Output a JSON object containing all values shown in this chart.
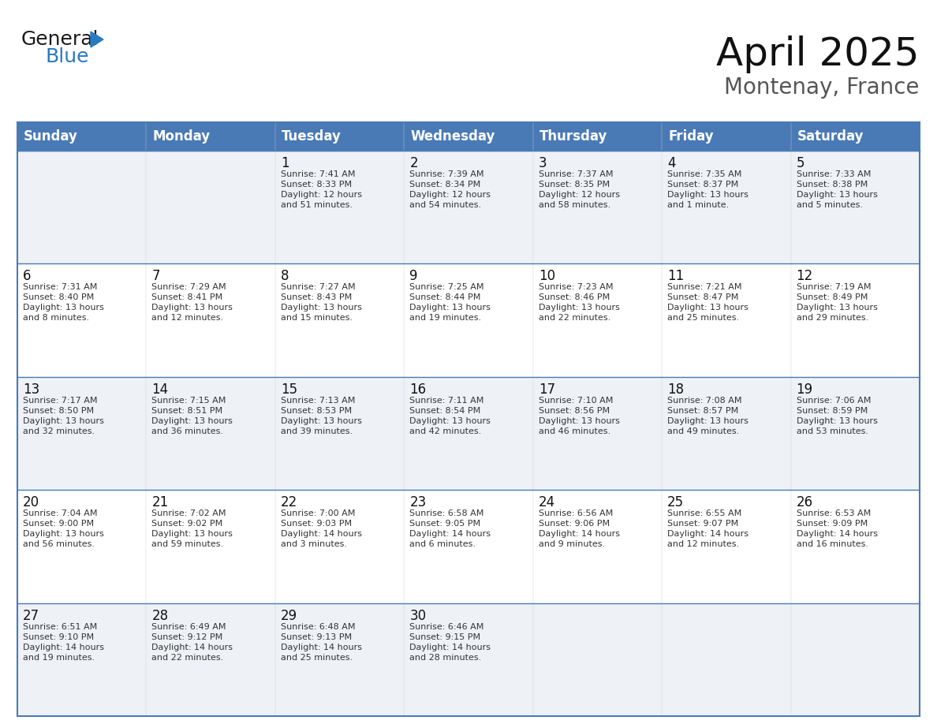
{
  "title": "April 2025",
  "subtitle": "Montenay, France",
  "header_bg_color": "#4a7ab5",
  "header_text_color": "#ffffff",
  "row_bg_color_even": "#eef2f7",
  "row_bg_color_odd": "#ffffff",
  "cell_border_color": "#4a7ab5",
  "day_headers": [
    "Sunday",
    "Monday",
    "Tuesday",
    "Wednesday",
    "Thursday",
    "Friday",
    "Saturday"
  ],
  "weeks": [
    [
      {
        "day": "",
        "sunrise": "",
        "sunset": "",
        "daylight": ""
      },
      {
        "day": "",
        "sunrise": "",
        "sunset": "",
        "daylight": ""
      },
      {
        "day": "1",
        "sunrise": "Sunrise: 7:41 AM",
        "sunset": "Sunset: 8:33 PM",
        "daylight": "Daylight: 12 hours\nand 51 minutes."
      },
      {
        "day": "2",
        "sunrise": "Sunrise: 7:39 AM",
        "sunset": "Sunset: 8:34 PM",
        "daylight": "Daylight: 12 hours\nand 54 minutes."
      },
      {
        "day": "3",
        "sunrise": "Sunrise: 7:37 AM",
        "sunset": "Sunset: 8:35 PM",
        "daylight": "Daylight: 12 hours\nand 58 minutes."
      },
      {
        "day": "4",
        "sunrise": "Sunrise: 7:35 AM",
        "sunset": "Sunset: 8:37 PM",
        "daylight": "Daylight: 13 hours\nand 1 minute."
      },
      {
        "day": "5",
        "sunrise": "Sunrise: 7:33 AM",
        "sunset": "Sunset: 8:38 PM",
        "daylight": "Daylight: 13 hours\nand 5 minutes."
      }
    ],
    [
      {
        "day": "6",
        "sunrise": "Sunrise: 7:31 AM",
        "sunset": "Sunset: 8:40 PM",
        "daylight": "Daylight: 13 hours\nand 8 minutes."
      },
      {
        "day": "7",
        "sunrise": "Sunrise: 7:29 AM",
        "sunset": "Sunset: 8:41 PM",
        "daylight": "Daylight: 13 hours\nand 12 minutes."
      },
      {
        "day": "8",
        "sunrise": "Sunrise: 7:27 AM",
        "sunset": "Sunset: 8:43 PM",
        "daylight": "Daylight: 13 hours\nand 15 minutes."
      },
      {
        "day": "9",
        "sunrise": "Sunrise: 7:25 AM",
        "sunset": "Sunset: 8:44 PM",
        "daylight": "Daylight: 13 hours\nand 19 minutes."
      },
      {
        "day": "10",
        "sunrise": "Sunrise: 7:23 AM",
        "sunset": "Sunset: 8:46 PM",
        "daylight": "Daylight: 13 hours\nand 22 minutes."
      },
      {
        "day": "11",
        "sunrise": "Sunrise: 7:21 AM",
        "sunset": "Sunset: 8:47 PM",
        "daylight": "Daylight: 13 hours\nand 25 minutes."
      },
      {
        "day": "12",
        "sunrise": "Sunrise: 7:19 AM",
        "sunset": "Sunset: 8:49 PM",
        "daylight": "Daylight: 13 hours\nand 29 minutes."
      }
    ],
    [
      {
        "day": "13",
        "sunrise": "Sunrise: 7:17 AM",
        "sunset": "Sunset: 8:50 PM",
        "daylight": "Daylight: 13 hours\nand 32 minutes."
      },
      {
        "day": "14",
        "sunrise": "Sunrise: 7:15 AM",
        "sunset": "Sunset: 8:51 PM",
        "daylight": "Daylight: 13 hours\nand 36 minutes."
      },
      {
        "day": "15",
        "sunrise": "Sunrise: 7:13 AM",
        "sunset": "Sunset: 8:53 PM",
        "daylight": "Daylight: 13 hours\nand 39 minutes."
      },
      {
        "day": "16",
        "sunrise": "Sunrise: 7:11 AM",
        "sunset": "Sunset: 8:54 PM",
        "daylight": "Daylight: 13 hours\nand 42 minutes."
      },
      {
        "day": "17",
        "sunrise": "Sunrise: 7:10 AM",
        "sunset": "Sunset: 8:56 PM",
        "daylight": "Daylight: 13 hours\nand 46 minutes."
      },
      {
        "day": "18",
        "sunrise": "Sunrise: 7:08 AM",
        "sunset": "Sunset: 8:57 PM",
        "daylight": "Daylight: 13 hours\nand 49 minutes."
      },
      {
        "day": "19",
        "sunrise": "Sunrise: 7:06 AM",
        "sunset": "Sunset: 8:59 PM",
        "daylight": "Daylight: 13 hours\nand 53 minutes."
      }
    ],
    [
      {
        "day": "20",
        "sunrise": "Sunrise: 7:04 AM",
        "sunset": "Sunset: 9:00 PM",
        "daylight": "Daylight: 13 hours\nand 56 minutes."
      },
      {
        "day": "21",
        "sunrise": "Sunrise: 7:02 AM",
        "sunset": "Sunset: 9:02 PM",
        "daylight": "Daylight: 13 hours\nand 59 minutes."
      },
      {
        "day": "22",
        "sunrise": "Sunrise: 7:00 AM",
        "sunset": "Sunset: 9:03 PM",
        "daylight": "Daylight: 14 hours\nand 3 minutes."
      },
      {
        "day": "23",
        "sunrise": "Sunrise: 6:58 AM",
        "sunset": "Sunset: 9:05 PM",
        "daylight": "Daylight: 14 hours\nand 6 minutes."
      },
      {
        "day": "24",
        "sunrise": "Sunrise: 6:56 AM",
        "sunset": "Sunset: 9:06 PM",
        "daylight": "Daylight: 14 hours\nand 9 minutes."
      },
      {
        "day": "25",
        "sunrise": "Sunrise: 6:55 AM",
        "sunset": "Sunset: 9:07 PM",
        "daylight": "Daylight: 14 hours\nand 12 minutes."
      },
      {
        "day": "26",
        "sunrise": "Sunrise: 6:53 AM",
        "sunset": "Sunset: 9:09 PM",
        "daylight": "Daylight: 14 hours\nand 16 minutes."
      }
    ],
    [
      {
        "day": "27",
        "sunrise": "Sunrise: 6:51 AM",
        "sunset": "Sunset: 9:10 PM",
        "daylight": "Daylight: 14 hours\nand 19 minutes."
      },
      {
        "day": "28",
        "sunrise": "Sunrise: 6:49 AM",
        "sunset": "Sunset: 9:12 PM",
        "daylight": "Daylight: 14 hours\nand 22 minutes."
      },
      {
        "day": "29",
        "sunrise": "Sunrise: 6:48 AM",
        "sunset": "Sunset: 9:13 PM",
        "daylight": "Daylight: 14 hours\nand 25 minutes."
      },
      {
        "day": "30",
        "sunrise": "Sunrise: 6:46 AM",
        "sunset": "Sunset: 9:15 PM",
        "daylight": "Daylight: 14 hours\nand 28 minutes."
      },
      {
        "day": "",
        "sunrise": "",
        "sunset": "",
        "daylight": ""
      },
      {
        "day": "",
        "sunrise": "",
        "sunset": "",
        "daylight": ""
      },
      {
        "day": "",
        "sunrise": "",
        "sunset": "",
        "daylight": ""
      }
    ]
  ],
  "logo_color_general": "#1a1a1a",
  "logo_color_blue": "#2a7abf",
  "logo_triangle_color": "#2a7abf",
  "title_fontsize": 36,
  "subtitle_fontsize": 20,
  "header_fontsize": 12,
  "day_num_fontsize": 12,
  "cell_text_fontsize": 8,
  "fig_width": 11.88,
  "fig_height": 9.18,
  "fig_dpi": 100
}
